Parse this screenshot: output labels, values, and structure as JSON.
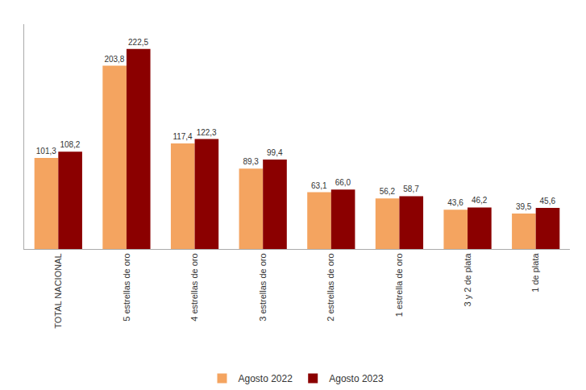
{
  "chart_data": {
    "type": "bar",
    "categories": [
      "TOTAL NACIONAL",
      "5 estrellas de oro",
      "4 estrellas de oro",
      "3 estrellas de oro",
      "2 estrellas de oro",
      "1 estrella de oro",
      "3 y 2 de plata",
      "1 de plata"
    ],
    "series": [
      {
        "name": "Agosto 2022",
        "color": "#F4A460",
        "values": [
          101.3,
          203.8,
          117.4,
          89.3,
          63.1,
          56.2,
          43.6,
          39.5
        ],
        "value_labels": [
          "101,3",
          "203,8",
          "117,4",
          "89,3",
          "63,1",
          "56,2",
          "43,6",
          "39,5"
        ]
      },
      {
        "name": "Agosto 2023",
        "color": "#8B0000",
        "values": [
          108.2,
          222.5,
          122.3,
          99.4,
          66.0,
          58.7,
          46.2,
          45.6
        ],
        "value_labels": [
          "108,2",
          "222,5",
          "122,3",
          "99,4",
          "66,0",
          "58,7",
          "46,2",
          "45,6"
        ]
      }
    ],
    "ylim": [
      0,
      250
    ],
    "grid": false,
    "legend": "bottom",
    "data_labels": true,
    "tick_labels": "x"
  }
}
